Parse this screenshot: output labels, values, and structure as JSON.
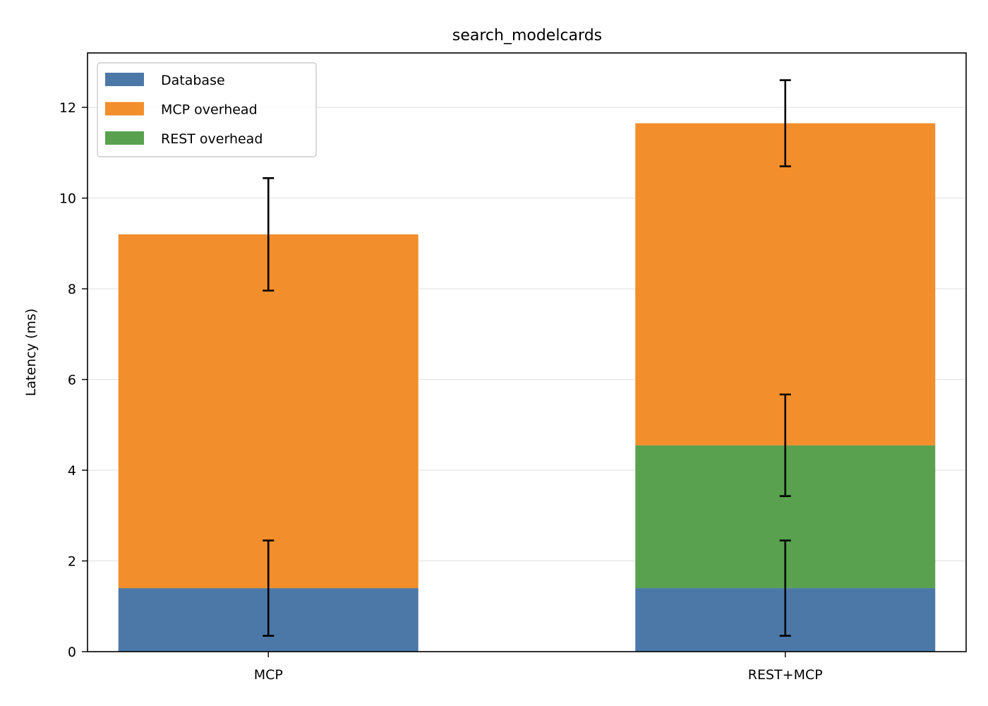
{
  "chart_data": {
    "type": "bar",
    "stacked": true,
    "title": "search_modelcards",
    "xlabel": "",
    "ylabel": "Latency (ms)",
    "ylim": [
      0,
      13.2
    ],
    "yticks": [
      0,
      2,
      4,
      6,
      8,
      10,
      12
    ],
    "grid": "y",
    "legend_position": "top-left",
    "categories": [
      "MCP",
      "REST+MCP"
    ],
    "series": [
      {
        "name": "Database",
        "color": "#4c78a8",
        "values": [
          1.4,
          1.4
        ],
        "errors": [
          1.05,
          1.05
        ]
      },
      {
        "name": "REST overhead",
        "color": "#59a14f",
        "values": [
          0,
          3.15
        ],
        "errors": [
          null,
          1.12
        ]
      },
      {
        "name": "MCP overhead",
        "color": "#f28e2b",
        "values": [
          7.8,
          7.1
        ],
        "errors": [
          1.24,
          0.95
        ]
      }
    ],
    "legend_order": [
      "Database",
      "MCP overhead",
      "REST overhead"
    ]
  }
}
